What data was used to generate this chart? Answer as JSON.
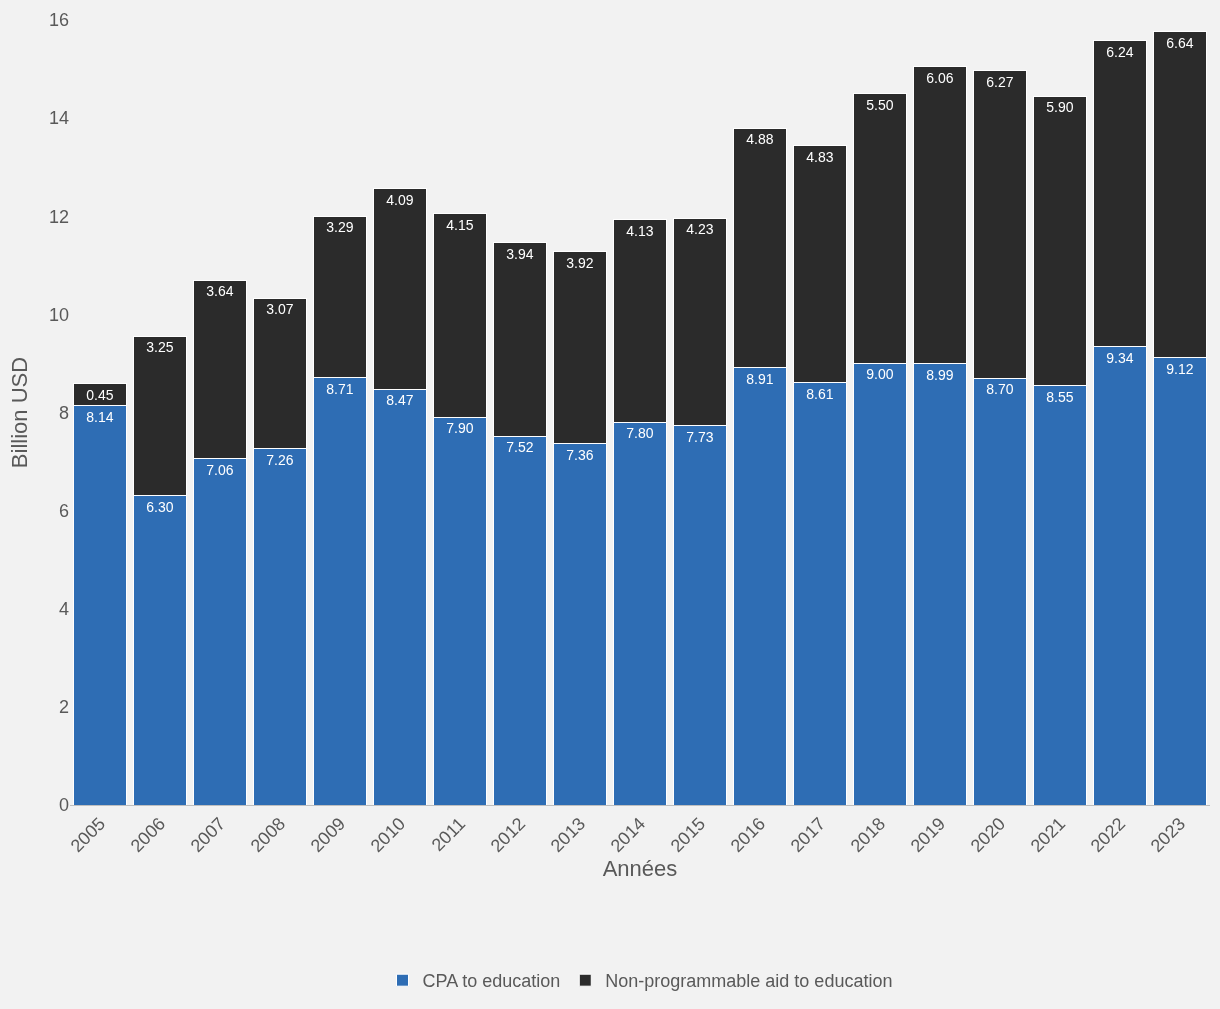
{
  "chart_data": {
    "type": "bar",
    "stacked": true,
    "xlabel": "Années",
    "ylabel": "Billion USD",
    "categories": [
      "2005",
      "2006",
      "2007",
      "2008",
      "2009",
      "2010",
      "2011",
      "2012",
      "2013",
      "2014",
      "2015",
      "2016",
      "2017",
      "2018",
      "2019",
      "2020",
      "2021",
      "2022",
      "2023"
    ],
    "series": [
      {
        "name": "CPA to education",
        "color": "#2e6db4",
        "values": [
          8.14,
          6.3,
          7.06,
          7.26,
          8.71,
          8.47,
          7.9,
          7.52,
          7.36,
          7.8,
          7.73,
          8.91,
          8.61,
          9.0,
          8.99,
          8.7,
          8.55,
          9.34,
          9.12
        ],
        "value_labels": [
          "8.14",
          "6.30",
          "7.06",
          "7.26",
          "8.71",
          "8.47",
          "7.90",
          "7.52",
          "7.36",
          "7.80",
          "7.73",
          "8.91",
          "8.61",
          "9.00",
          "8.99",
          "8.70",
          "8.55",
          "9.34",
          "9.12"
        ]
      },
      {
        "name": "Non-programmable aid to education",
        "color": "#2b2b2b",
        "values": [
          0.45,
          3.25,
          3.64,
          3.07,
          3.29,
          4.09,
          4.15,
          3.94,
          3.92,
          4.13,
          4.23,
          4.88,
          4.83,
          5.5,
          6.06,
          6.27,
          5.9,
          6.24,
          6.64
        ],
        "value_labels": [
          "0.45",
          "3.25",
          "3.64",
          "3.07",
          "3.29",
          "4.09",
          "4.15",
          "3.94",
          "3.92",
          "4.13",
          "4.23",
          "4.88",
          "4.83",
          "5.50",
          "6.06",
          "6.27",
          "5.90",
          "6.24",
          "6.64"
        ]
      }
    ],
    "ylim": [
      0,
      16
    ],
    "yticks": [
      0,
      2,
      4,
      6,
      8,
      10,
      12,
      14,
      16
    ],
    "grid": false,
    "legend": "bottom"
  }
}
